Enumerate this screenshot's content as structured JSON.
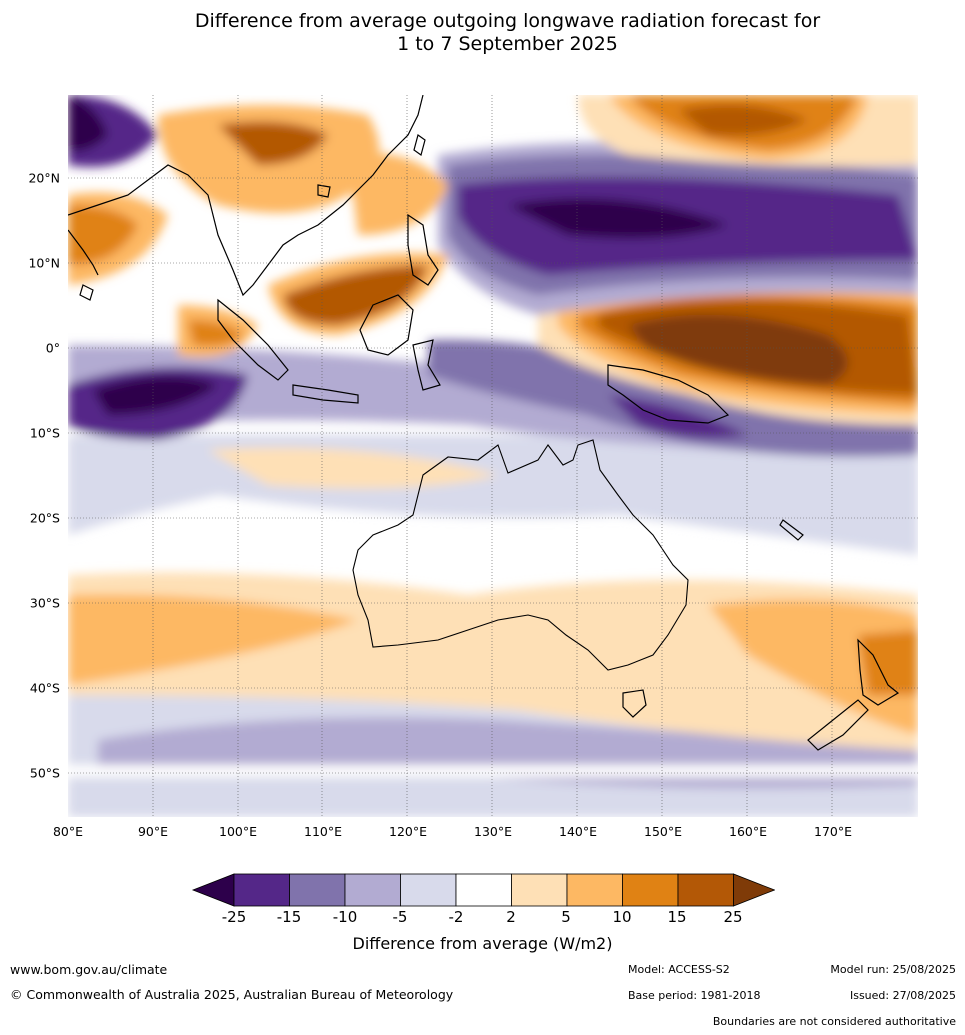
{
  "title_line1": "Difference from average outgoing longwave radiation forecast for",
  "title_line2": "1 to 7 September 2025",
  "x_labels": [
    "80°E",
    "90°E",
    "100°E",
    "110°E",
    "120°E",
    "130°E",
    "140°E",
    "150°E",
    "160°E",
    "170°E"
  ],
  "y_labels": [
    "20°N",
    "10°N",
    "0°",
    "10°S",
    "20°S",
    "30°S",
    "40°S",
    "50°S"
  ],
  "colorbar": {
    "labels": [
      "-25",
      "-15",
      "-10",
      "-5",
      "-2",
      "2",
      "5",
      "10",
      "15",
      "25"
    ],
    "colors": [
      "#2d004b",
      "#542788",
      "#8073ac",
      "#b2abd2",
      "#d8daeb",
      "#ffffff",
      "#fee0b6",
      "#fdb863",
      "#e08214",
      "#b35806",
      "#7f3b08"
    ],
    "title": "Difference from average (W/m2)"
  },
  "footer": {
    "website": "www.bom.gov.au/climate",
    "copyright": "© Commonwealth of Australia 2025, Australian Bureau of Meteorology",
    "model": "Model: ACCESS-S2",
    "base_period": "Base period: 1981-2018",
    "model_run": "Model run: 25/08/2025",
    "issued": "Issued: 27/08/2025",
    "disclaimer": "Boundaries are not considered authoritative"
  }
}
